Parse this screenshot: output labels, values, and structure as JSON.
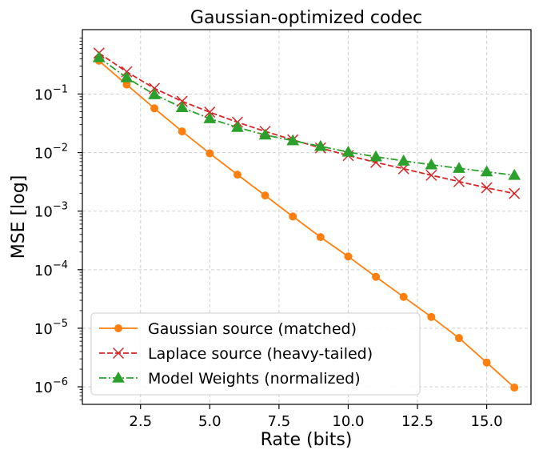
{
  "chart_data": {
    "type": "line",
    "title": "Gaussian-optimized codec",
    "xlabel": "Rate (bits)",
    "ylabel": "MSE [log]",
    "yscale": "log",
    "xlim": [
      0.4,
      16.6
    ],
    "ylim_exponent": [
      -6.3,
      0.1
    ],
    "xticks": [
      2.5,
      5.0,
      7.5,
      10.0,
      12.5,
      15.0
    ],
    "xtick_labels": [
      "2.5",
      "5.0",
      "7.5",
      "10.0",
      "12.5",
      "15.0"
    ],
    "yticks_exponent": [
      -6,
      -5,
      -4,
      -3,
      -2,
      -1
    ],
    "ytick_base": "10",
    "ytick_exps": [
      "−6",
      "−5",
      "−4",
      "−3",
      "−2",
      "−1"
    ],
    "grid": true,
    "legend_position": "lower-left",
    "x": [
      1,
      2,
      3,
      4,
      5,
      6,
      7,
      8,
      9,
      10,
      11,
      12,
      13,
      14,
      15,
      16
    ],
    "series": [
      {
        "name": "Gaussian source (matched)",
        "color": "#ff7f0e",
        "style": "solid",
        "marker": "circle",
        "values": [
          0.37,
          0.145,
          0.057,
          0.023,
          0.0097,
          0.0042,
          0.00185,
          0.00081,
          0.00036,
          0.000168,
          7.55e-05,
          3.43e-05,
          1.56e-05,
          6.8e-06,
          2.6e-06,
          9.7e-07
        ]
      },
      {
        "name": "Laplace source (heavy-tailed)",
        "color": "#d62728",
        "style": "dashed",
        "marker": "x",
        "values": [
          0.5,
          0.24,
          0.125,
          0.075,
          0.049,
          0.033,
          0.023,
          0.0165,
          0.012,
          0.0089,
          0.0068,
          0.0053,
          0.0041,
          0.0032,
          0.0025,
          0.002
        ]
      },
      {
        "name": "Model Weights (normalized)",
        "color": "#2ca02c",
        "style": "dashdot",
        "marker": "triangle",
        "values": [
          0.42,
          0.19,
          0.098,
          0.059,
          0.038,
          0.027,
          0.02,
          0.016,
          0.0128,
          0.0102,
          0.0085,
          0.0072,
          0.0062,
          0.0054,
          0.0047,
          0.0041
        ]
      }
    ]
  }
}
